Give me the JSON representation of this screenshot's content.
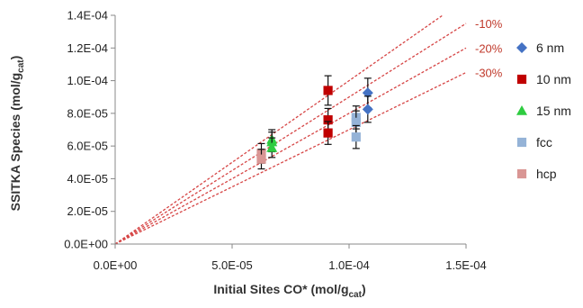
{
  "chart_data": {
    "type": "scatter",
    "title": "",
    "xlabel": {
      "main": "Initial Sites CO* (mol/g",
      "sub": "cat",
      "end": ")"
    },
    "ylabel": {
      "main": "SSITKA Species (mol/g",
      "sub": "cat",
      "end": ")"
    },
    "xlim": [
      0,
      0.00015
    ],
    "ylim": [
      0,
      0.00014
    ],
    "x_ticks": [
      "0.0E+00",
      "5.0E-05",
      "1.0E-04",
      "1.5E-04"
    ],
    "y_ticks": [
      "0.0E+00",
      "2.0E-05",
      "4.0E-05",
      "6.0E-05",
      "8.0E-05",
      "1.0E-04",
      "1.2E-04",
      "1.4E-04"
    ],
    "x_tick_values": [
      0,
      5e-05,
      0.0001,
      0.00015
    ],
    "y_tick_values": [
      0,
      2e-05,
      4e-05,
      6e-05,
      8e-05,
      0.0001,
      0.00012,
      0.00014
    ],
    "grid": false,
    "legend_position": "right",
    "reference_lines": [
      {
        "slope": 1.0,
        "label": "",
        "color": "#d64545"
      },
      {
        "slope": 0.9,
        "label": "-10%",
        "color": "#d64545"
      },
      {
        "slope": 0.8,
        "label": "-20%",
        "color": "#d64545"
      },
      {
        "slope": 0.7,
        "label": "-30%",
        "color": "#d64545"
      }
    ],
    "series": [
      {
        "name": "6 nm",
        "marker": "diamond",
        "color": "#4472c4",
        "points": [
          {
            "x": 0.000108,
            "y": 9.25e-05,
            "err": 9e-06
          },
          {
            "x": 0.000108,
            "y": 8.25e-05,
            "err": 8e-06
          }
        ]
      },
      {
        "name": "10 nm",
        "marker": "square",
        "color": "#c00000",
        "points": [
          {
            "x": 9.1e-05,
            "y": 9.4e-05,
            "err": 9e-06
          },
          {
            "x": 9.1e-05,
            "y": 7.6e-05,
            "err": 7e-06
          },
          {
            "x": 9.1e-05,
            "y": 6.8e-05,
            "err": 7e-06
          }
        ]
      },
      {
        "name": "15 nm",
        "marker": "triangle",
        "color": "#2ecc40",
        "points": [
          {
            "x": 6.7e-05,
            "y": 6.4e-05,
            "err": 6e-06
          },
          {
            "x": 6.7e-05,
            "y": 6.25e-05,
            "err": 6e-06
          },
          {
            "x": 6.7e-05,
            "y": 5.9e-05,
            "err": 6e-06
          }
        ]
      },
      {
        "name": "fcc",
        "marker": "square",
        "color": "#95b3d7",
        "points": [
          {
            "x": 0.000103,
            "y": 7.75e-05,
            "err": 7e-06
          },
          {
            "x": 0.000103,
            "y": 7.45e-05,
            "err": 7e-06
          },
          {
            "x": 0.000103,
            "y": 6.55e-05,
            "err": 7e-06
          }
        ]
      },
      {
        "name": "hcp",
        "marker": "square",
        "color": "#d99694",
        "points": [
          {
            "x": 6.25e-05,
            "y": 5.55e-05,
            "err": 6e-06
          },
          {
            "x": 6.25e-05,
            "y": 5.2e-05,
            "err": 6e-06
          }
        ]
      }
    ]
  }
}
